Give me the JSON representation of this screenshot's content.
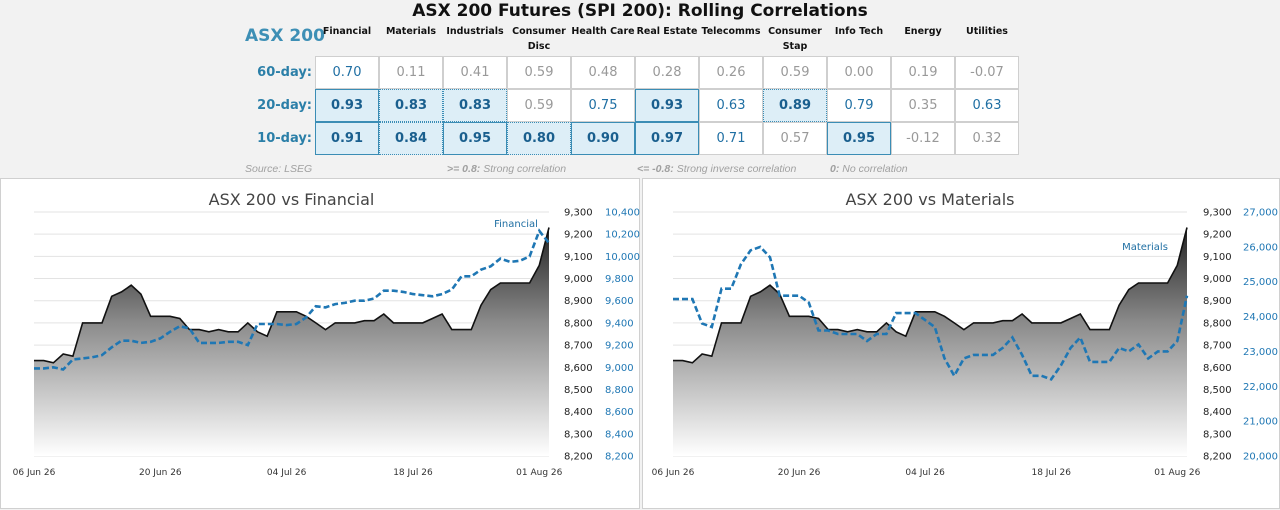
{
  "header": {
    "title": "ASX 200 Futures (SPI 200): Rolling Correlations",
    "index_label": "ASX 200"
  },
  "sectors": [
    "Financial",
    "Materials",
    "Industrials",
    "Consumer Disc",
    "Health Care",
    "Real Estate",
    "Telecomms",
    "Consumer Stap",
    "Info Tech",
    "Energy",
    "Utilities"
  ],
  "sector_display": [
    [
      "Financial"
    ],
    [
      "Materials"
    ],
    [
      "Industrials"
    ],
    [
      "Consumer",
      "Disc"
    ],
    [
      "Health Care"
    ],
    [
      "Real Estate"
    ],
    [
      "Telecomms"
    ],
    [
      "Consumer",
      "Stap"
    ],
    [
      "Info Tech"
    ],
    [
      "Energy"
    ],
    [
      "Utilities"
    ]
  ],
  "rows": [
    {
      "label": "60-day:",
      "values": [
        "0.70",
        "0.11",
        "0.41",
        "0.59",
        "0.48",
        "0.28",
        "0.26",
        "0.59",
        "0.00",
        "0.19",
        "-0.07"
      ]
    },
    {
      "label": "20-day:",
      "values": [
        "0.93",
        "0.83",
        "0.83",
        "0.59",
        "0.75",
        "0.93",
        "0.63",
        "0.89",
        "0.79",
        "0.35",
        "0.63"
      ]
    },
    {
      "label": "10-day:",
      "values": [
        "0.91",
        "0.84",
        "0.95",
        "0.80",
        "0.90",
        "0.97",
        "0.71",
        "0.57",
        "0.95",
        "-0.12",
        "0.32"
      ]
    }
  ],
  "footnotes": {
    "source": "Source: LSEG",
    "strong_key": ">= 0.8:",
    "strong_text": "Strong correlation",
    "inverse_key": "<= -0.8:",
    "inverse_text": "Strong inverse correlation",
    "none_key": "0:",
    "none_text": "No correlation"
  },
  "colors": {
    "accent": "#3d8fb5",
    "secondary_line": "#1f77b4",
    "highlight_fill": "#ddeef7"
  },
  "chart_data": [
    {
      "type": "area",
      "title": "ASX 200 vs Financial",
      "x_ticks": [
        "06 Jun 26",
        "20 Jun 26",
        "04 Jul 26",
        "18 Jul 26",
        "01 Aug 26"
      ],
      "y_left": {
        "ticks": [
          "9,300",
          "9,200",
          "9,100",
          "9,000",
          "8,900",
          "8,800",
          "8,700",
          "8,600",
          "8,500",
          "8,400",
          "8,300",
          "8,200"
        ],
        "min": 8200,
        "max": 9300
      },
      "y_right": {
        "ticks": [
          "10,400",
          "10,200",
          "10,000",
          "9,800",
          "9,600",
          "9,400",
          "9,200",
          "9,000",
          "8,800",
          "8,600",
          "8,400",
          "8,200"
        ],
        "min": 8200,
        "max": 10400
      },
      "series": [
        {
          "axis": "left",
          "style": "area",
          "values": [
            8630,
            8630,
            8620,
            8660,
            8650,
            8800,
            8800,
            8800,
            8920,
            8940,
            8970,
            8930,
            8830,
            8830,
            8830,
            8820,
            8770,
            8770,
            8760,
            8770,
            8760,
            8760,
            8800,
            8760,
            8740,
            8850,
            8850,
            8850,
            8830,
            8800,
            8770,
            8800,
            8800,
            8800,
            8810,
            8810,
            8840,
            8800,
            8800,
            8800,
            8800,
            8820,
            8840,
            8770,
            8770,
            8770,
            8880,
            8950,
            8980,
            8980,
            8980,
            8980,
            9060,
            9230
          ]
        },
        {
          "axis": "right",
          "style": "dashed",
          "name": "Financial",
          "values": [
            8990,
            8990,
            9000,
            8980,
            9070,
            9080,
            9090,
            9110,
            9180,
            9240,
            9240,
            9220,
            9230,
            9260,
            9320,
            9370,
            9350,
            9220,
            9220,
            9220,
            9230,
            9230,
            9200,
            9390,
            9390,
            9390,
            9380,
            9390,
            9450,
            9550,
            9540,
            9570,
            9580,
            9600,
            9600,
            9620,
            9690,
            9690,
            9680,
            9660,
            9650,
            9640,
            9660,
            9700,
            9820,
            9820,
            9880,
            9910,
            9980,
            9950,
            9960,
            10000,
            10230,
            10120
          ]
        }
      ]
    },
    {
      "type": "area",
      "title": "ASX 200 vs Materials",
      "x_ticks": [
        "06 Jun 26",
        "20 Jun 26",
        "04 Jul 26",
        "18 Jul 26",
        "01 Aug 26"
      ],
      "y_left": {
        "ticks": [
          "9,300",
          "9,200",
          "9,100",
          "9,000",
          "8,900",
          "8,800",
          "8,700",
          "8,600",
          "8,500",
          "8,400",
          "8,300",
          "8,200"
        ],
        "min": 8200,
        "max": 9300
      },
      "y_right": {
        "ticks": [
          "27,000",
          "26,000",
          "25,000",
          "24,000",
          "23,000",
          "22,000",
          "21,000",
          "20,000"
        ],
        "min": 20000,
        "max": 27000
      },
      "series": [
        {
          "axis": "left",
          "style": "area",
          "values": [
            8630,
            8630,
            8620,
            8660,
            8650,
            8800,
            8800,
            8800,
            8920,
            8940,
            8970,
            8930,
            8830,
            8830,
            8830,
            8820,
            8770,
            8770,
            8760,
            8770,
            8760,
            8760,
            8800,
            8760,
            8740,
            8850,
            8850,
            8850,
            8830,
            8800,
            8770,
            8800,
            8800,
            8800,
            8810,
            8810,
            8840,
            8800,
            8800,
            8800,
            8800,
            8820,
            8840,
            8770,
            8770,
            8770,
            8880,
            8950,
            8980,
            8980,
            8980,
            8980,
            9060,
            9230
          ]
        },
        {
          "axis": "right",
          "style": "dashed",
          "name": "Materials",
          "values": [
            24500,
            24500,
            24500,
            23800,
            23700,
            24800,
            24800,
            25500,
            25900,
            26000,
            25700,
            24600,
            24600,
            24600,
            24400,
            23600,
            23600,
            23500,
            23500,
            23500,
            23300,
            23500,
            23500,
            24100,
            24100,
            24100,
            23900,
            23700,
            22800,
            22300,
            22800,
            22900,
            22900,
            22900,
            23100,
            23400,
            22900,
            22300,
            22300,
            22200,
            22600,
            23100,
            23400,
            22700,
            22700,
            22700,
            23100,
            23000,
            23200,
            22800,
            23000,
            23000,
            23300,
            24600
          ]
        }
      ]
    }
  ]
}
